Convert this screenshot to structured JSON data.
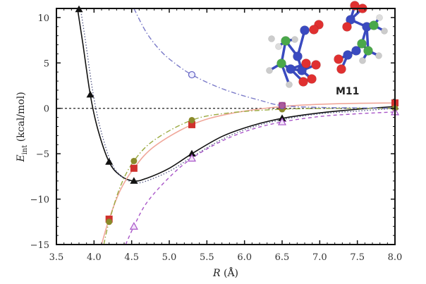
{
  "chart_data": {
    "type": "line",
    "title": "",
    "xlabel": "R (Å)",
    "ylabel": "E_int (kcal/mol)",
    "ylabel_main": "E",
    "ylabel_sub": "int",
    "ylabel_unit": " (kcal/mol)",
    "xlim": [
      3.5,
      8.0
    ],
    "ylim": [
      -15,
      11
    ],
    "xticks": [
      3.5,
      4.0,
      4.5,
      5.0,
      5.5,
      6.0,
      6.5,
      7.0,
      7.5,
      8.0
    ],
    "xtick_labels": [
      "3.5",
      "4.0",
      "4.5",
      "5.0",
      "5.5",
      "6.0",
      "6.5",
      "7.0",
      "7.5",
      "8.0"
    ],
    "yticks": [
      10,
      5,
      0,
      -5,
      -10,
      -15
    ],
    "ytick_labels": [
      "10",
      "5",
      "0",
      "−5",
      "−10",
      "−15"
    ],
    "grid": false,
    "legend": "none",
    "annotation": "M11",
    "zero_line": true,
    "series": [
      {
        "name": "total (black solid, filled triangles)",
        "color": "#111111",
        "marker": "filled-triangle",
        "line": "solid",
        "points": [
          [
            3.8,
            10.9
          ],
          [
            3.95,
            1.5
          ],
          [
            4.2,
            -5.9
          ],
          [
            4.53,
            -8.0
          ],
          [
            5.3,
            -5.0
          ],
          [
            6.5,
            -1.1
          ],
          [
            8.0,
            0.2
          ]
        ],
        "curve": [
          [
            3.78,
            11
          ],
          [
            3.85,
            7.2
          ],
          [
            3.95,
            1.5
          ],
          [
            4.05,
            -2.3
          ],
          [
            4.2,
            -5.9
          ],
          [
            4.35,
            -7.4
          ],
          [
            4.53,
            -8.0
          ],
          [
            4.7,
            -7.7
          ],
          [
            5.0,
            -6.6
          ],
          [
            5.3,
            -5.0
          ],
          [
            5.7,
            -3.1
          ],
          [
            6.1,
            -1.9
          ],
          [
            6.5,
            -1.1
          ],
          [
            7.0,
            -0.5
          ],
          [
            7.5,
            -0.1
          ],
          [
            8.0,
            0.2
          ]
        ]
      },
      {
        "name": "dotted reference (blue-gray)",
        "color": "#5a5f8a",
        "marker": "none",
        "line": "dotted",
        "points": [],
        "curve": [
          [
            3.82,
            11
          ],
          [
            3.89,
            7.2
          ],
          [
            3.99,
            1.5
          ],
          [
            4.09,
            -2.4
          ],
          [
            4.23,
            -6.0
          ],
          [
            4.38,
            -7.6
          ],
          [
            4.56,
            -8.2
          ],
          [
            4.73,
            -7.9
          ],
          [
            5.03,
            -6.8
          ],
          [
            5.33,
            -5.2
          ],
          [
            5.73,
            -3.3
          ],
          [
            6.13,
            -2.0
          ],
          [
            6.53,
            -1.2
          ],
          [
            7.0,
            -0.6
          ],
          [
            7.5,
            -0.3
          ],
          [
            8.0,
            0.0
          ]
        ]
      },
      {
        "name": "red squares (light red solid)",
        "color": "#d0312d",
        "line_color": "#f0a79a",
        "marker": "filled-square",
        "line": "solid",
        "points": [
          [
            4.2,
            -12.2
          ],
          [
            4.53,
            -6.6
          ],
          [
            5.3,
            -1.8
          ],
          [
            6.5,
            0.2
          ],
          [
            8.0,
            0.6
          ]
        ],
        "curve": [
          [
            4.1,
            -15
          ],
          [
            4.2,
            -12.2
          ],
          [
            4.35,
            -9.0
          ],
          [
            4.53,
            -6.6
          ],
          [
            4.8,
            -4.2
          ],
          [
            5.3,
            -1.8
          ],
          [
            5.8,
            -0.6
          ],
          [
            6.5,
            0.2
          ],
          [
            7.2,
            0.5
          ],
          [
            8.0,
            0.6
          ]
        ]
      },
      {
        "name": "olive circles (green dash-dot)",
        "color": "#8a8a2a",
        "line_color": "#9aaa40",
        "marker": "filled-circle",
        "line": "dashdot",
        "points": [
          [
            4.2,
            -12.5
          ],
          [
            4.53,
            -5.8
          ],
          [
            5.3,
            -1.3
          ],
          [
            6.5,
            -0.1
          ],
          [
            8.0,
            0.0
          ]
        ],
        "curve": [
          [
            4.13,
            -15
          ],
          [
            4.2,
            -12.5
          ],
          [
            4.35,
            -8.6
          ],
          [
            4.53,
            -5.8
          ],
          [
            4.8,
            -3.5
          ],
          [
            5.3,
            -1.3
          ],
          [
            5.8,
            -0.5
          ],
          [
            6.5,
            -0.1
          ],
          [
            7.2,
            0.0
          ],
          [
            8.0,
            0.0
          ]
        ]
      },
      {
        "name": "purple open triangles (dashed)",
        "color": "#a855c8",
        "marker": "open-triangle",
        "line": "dashed",
        "points": [
          [
            4.53,
            -13.0
          ],
          [
            5.3,
            -5.5
          ],
          [
            6.5,
            -1.5
          ],
          [
            8.0,
            -0.4
          ]
        ],
        "curve": [
          [
            4.42,
            -15
          ],
          [
            4.53,
            -13.0
          ],
          [
            4.7,
            -10.4
          ],
          [
            5.0,
            -7.6
          ],
          [
            5.3,
            -5.5
          ],
          [
            5.7,
            -3.6
          ],
          [
            6.1,
            -2.3
          ],
          [
            6.5,
            -1.5
          ],
          [
            7.0,
            -0.9
          ],
          [
            7.5,
            -0.6
          ],
          [
            8.0,
            -0.4
          ]
        ]
      },
      {
        "name": "blue open circles (dash-dot)",
        "color": "#5b5bc0",
        "line_color": "#7a7ac8",
        "marker": "open-circle",
        "line": "dashdot",
        "points": [
          [
            5.3,
            3.7
          ],
          [
            6.5,
            0.3
          ]
        ],
        "curve": [
          [
            4.53,
            11
          ],
          [
            4.7,
            8.3
          ],
          [
            4.9,
            6.2
          ],
          [
            5.1,
            4.8
          ],
          [
            5.3,
            3.7
          ],
          [
            5.6,
            2.5
          ],
          [
            5.9,
            1.6
          ],
          [
            6.2,
            0.9
          ],
          [
            6.5,
            0.3
          ],
          [
            7.0,
            0.1
          ],
          [
            7.5,
            0.05
          ],
          [
            8.0,
            0.0
          ]
        ]
      }
    ]
  }
}
